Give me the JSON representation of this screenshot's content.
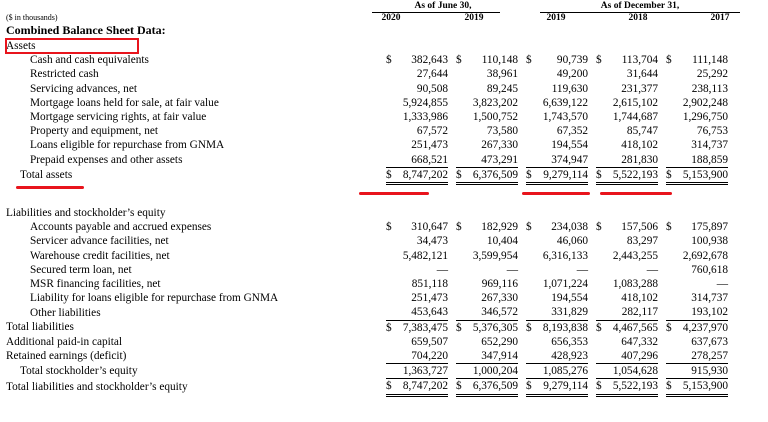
{
  "units": "($ in thousands)",
  "header": {
    "june_group": "As of June 30,",
    "dec_group": "As of December 31,",
    "years": [
      "2020",
      "2019",
      "2019",
      "2018",
      "2017"
    ]
  },
  "section_title": "Combined Balance Sheet Data:",
  "assets_heading": "Assets",
  "assets": [
    {
      "label": "Cash and cash equivalents",
      "cur": true,
      "v": [
        "382,643",
        "110,148",
        "90,739",
        "113,704",
        "111,148"
      ]
    },
    {
      "label": "Restricted cash",
      "v": [
        "27,644",
        "38,961",
        "49,200",
        "31,644",
        "25,292"
      ]
    },
    {
      "label": "Servicing advances, net",
      "v": [
        "90,508",
        "89,245",
        "119,630",
        "231,377",
        "238,113"
      ]
    },
    {
      "label": "Mortgage loans held for sale, at fair value",
      "v": [
        "5,924,855",
        "3,823,202",
        "6,639,122",
        "2,615,102",
        "2,902,248"
      ]
    },
    {
      "label": "Mortgage servicing rights, at fair value",
      "v": [
        "1,333,986",
        "1,500,752",
        "1,743,570",
        "1,744,687",
        "1,296,750"
      ]
    },
    {
      "label": "Property and equipment, net",
      "v": [
        "67,572",
        "73,580",
        "67,352",
        "85,747",
        "76,753"
      ]
    },
    {
      "label": "Loans eligible for repurchase from GNMA",
      "v": [
        "251,473",
        "267,330",
        "194,554",
        "418,102",
        "314,737"
      ]
    },
    {
      "label": "Prepaid expenses and other assets",
      "v": [
        "668,521",
        "473,291",
        "374,947",
        "281,830",
        "188,859"
      ]
    }
  ],
  "total_assets": {
    "label": "Total assets",
    "v": [
      "8,747,202",
      "6,376,509",
      "9,279,114",
      "5,522,193",
      "5,153,900"
    ]
  },
  "liab_heading": "Liabilities and stockholder’s equity",
  "liabilities": [
    {
      "label": "Accounts payable and accrued expenses",
      "cur": true,
      "v": [
        "310,647",
        "182,929",
        "234,038",
        "157,506",
        "175,897"
      ]
    },
    {
      "label": "Servicer advance facilities, net",
      "v": [
        "34,473",
        "10,404",
        "46,060",
        "83,297",
        "100,938"
      ]
    },
    {
      "label": "Warehouse credit facilities, net",
      "v": [
        "5,482,121",
        "3,599,954",
        "6,316,133",
        "2,443,255",
        "2,692,678"
      ]
    },
    {
      "label": "Secured term loan, net",
      "v": [
        "—",
        "—",
        "—",
        "—",
        "760,618"
      ]
    },
    {
      "label": "MSR financing facilities, net",
      "v": [
        "851,118",
        "969,116",
        "1,071,224",
        "1,083,288",
        "—"
      ]
    },
    {
      "label": "Liability for loans eligible for repurchase from GNMA",
      "v": [
        "251,473",
        "267,330",
        "194,554",
        "418,102",
        "314,737"
      ]
    },
    {
      "label": "Other liabilities",
      "v": [
        "453,643",
        "346,572",
        "331,829",
        "282,117",
        "193,102"
      ]
    }
  ],
  "total_liabilities": {
    "label": "Total liabilities",
    "v": [
      "7,383,475",
      "5,376,305",
      "8,193,838",
      "4,467,565",
      "4,237,970"
    ]
  },
  "equity": [
    {
      "label": "Additional paid-in capital",
      "v": [
        "659,507",
        "652,290",
        "656,353",
        "647,332",
        "637,673"
      ]
    },
    {
      "label": "Retained earnings (deficit)",
      "v": [
        "704,220",
        "347,914",
        "428,923",
        "407,296",
        "278,257"
      ]
    }
  ],
  "total_equity": {
    "label": "Total stockholder’s equity",
    "v": [
      "1,363,727",
      "1,000,204",
      "1,085,276",
      "1,054,628",
      "915,930"
    ]
  },
  "total_liab_equity": {
    "label": "Total liabilities and stockholder’s equity",
    "v": [
      "8,747,202",
      "6,376,509",
      "9,279,114",
      "5,522,193",
      "5,153,900"
    ]
  },
  "currency_symbol": "$",
  "highlight_color": "#e8141c"
}
